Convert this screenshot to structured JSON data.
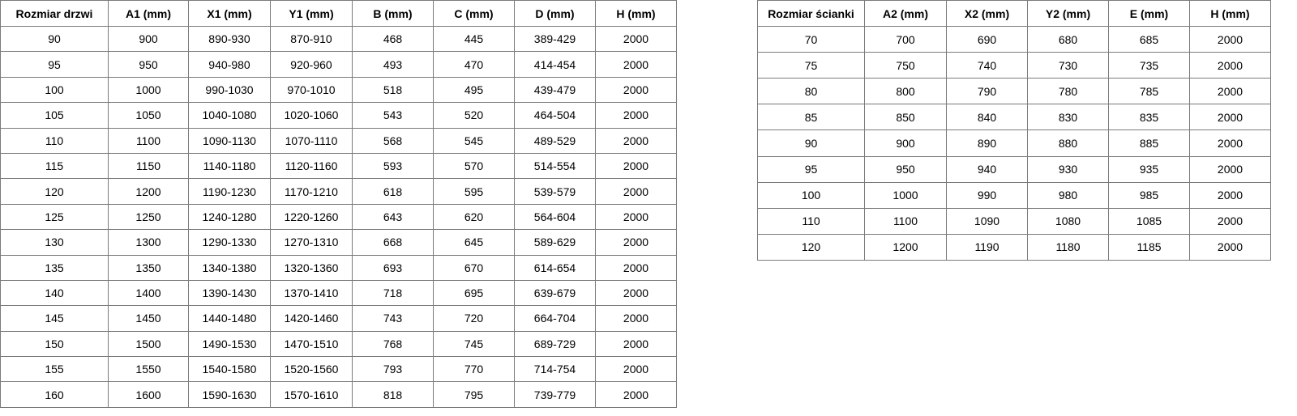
{
  "doors_table": {
    "headers": [
      "Rozmiar drzwi",
      "A1 (mm)",
      "X1 (mm)",
      "Y1 (mm)",
      "B (mm)",
      "C (mm)",
      "D (mm)",
      "H (mm)"
    ],
    "rows": [
      [
        "90",
        "900",
        "890-930",
        "870-910",
        "468",
        "445",
        "389-429",
        "2000"
      ],
      [
        "95",
        "950",
        "940-980",
        "920-960",
        "493",
        "470",
        "414-454",
        "2000"
      ],
      [
        "100",
        "1000",
        "990-1030",
        "970-1010",
        "518",
        "495",
        "439-479",
        "2000"
      ],
      [
        "105",
        "1050",
        "1040-1080",
        "1020-1060",
        "543",
        "520",
        "464-504",
        "2000"
      ],
      [
        "110",
        "1100",
        "1090-1130",
        "1070-1110",
        "568",
        "545",
        "489-529",
        "2000"
      ],
      [
        "115",
        "1150",
        "1140-1180",
        "1120-1160",
        "593",
        "570",
        "514-554",
        "2000"
      ],
      [
        "120",
        "1200",
        "1190-1230",
        "1170-1210",
        "618",
        "595",
        "539-579",
        "2000"
      ],
      [
        "125",
        "1250",
        "1240-1280",
        "1220-1260",
        "643",
        "620",
        "564-604",
        "2000"
      ],
      [
        "130",
        "1300",
        "1290-1330",
        "1270-1310",
        "668",
        "645",
        "589-629",
        "2000"
      ],
      [
        "135",
        "1350",
        "1340-1380",
        "1320-1360",
        "693",
        "670",
        "614-654",
        "2000"
      ],
      [
        "140",
        "1400",
        "1390-1430",
        "1370-1410",
        "718",
        "695",
        "639-679",
        "2000"
      ],
      [
        "145",
        "1450",
        "1440-1480",
        "1420-1460",
        "743",
        "720",
        "664-704",
        "2000"
      ],
      [
        "150",
        "1500",
        "1490-1530",
        "1470-1510",
        "768",
        "745",
        "689-729",
        "2000"
      ],
      [
        "155",
        "1550",
        "1540-1580",
        "1520-1560",
        "793",
        "770",
        "714-754",
        "2000"
      ],
      [
        "160",
        "1600",
        "1590-1630",
        "1570-1610",
        "818",
        "795",
        "739-779",
        "2000"
      ]
    ]
  },
  "walls_table": {
    "headers": [
      "Rozmiar ścianki",
      "A2 (mm)",
      "X2 (mm)",
      "Y2 (mm)",
      "E (mm)",
      "H (mm)"
    ],
    "rows": [
      [
        "70",
        "700",
        "690",
        "680",
        "685",
        "2000"
      ],
      [
        "75",
        "750",
        "740",
        "730",
        "735",
        "2000"
      ],
      [
        "80",
        "800",
        "790",
        "780",
        "785",
        "2000"
      ],
      [
        "85",
        "850",
        "840",
        "830",
        "835",
        "2000"
      ],
      [
        "90",
        "900",
        "890",
        "880",
        "885",
        "2000"
      ],
      [
        "95",
        "950",
        "940",
        "930",
        "935",
        "2000"
      ],
      [
        "100",
        "1000",
        "990",
        "980",
        "985",
        "2000"
      ],
      [
        "110",
        "1100",
        "1090",
        "1080",
        "1085",
        "2000"
      ],
      [
        "120",
        "1200",
        "1190",
        "1180",
        "1185",
        "2000"
      ]
    ]
  }
}
